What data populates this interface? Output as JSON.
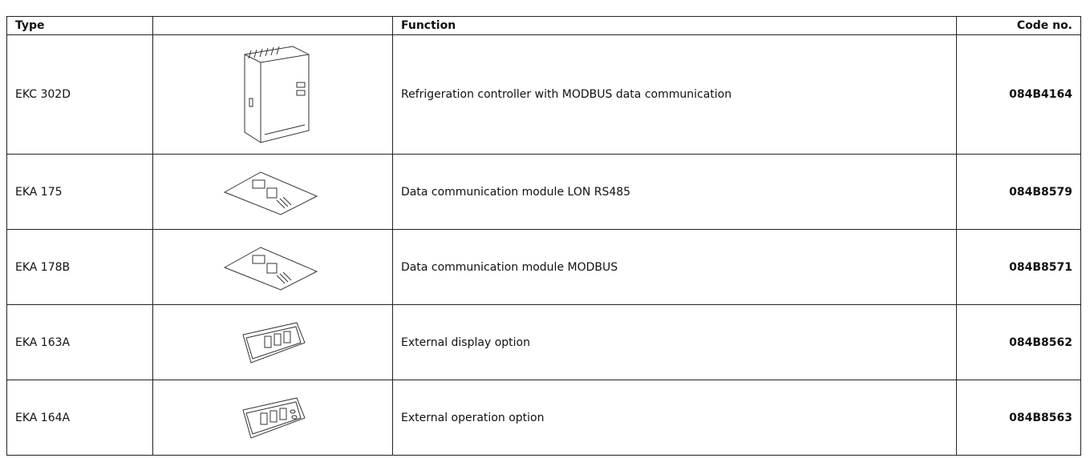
{
  "table": {
    "header": [
      "Type",
      "Function",
      "Code no."
    ],
    "rows": [
      [
        "EKC 302D",
        "Refrigeration controller with MODBUS data communication",
        "084B4164"
      ],
      [
        "EKA 175",
        "Data communication module LON RS485",
        "084B8579"
      ],
      [
        "EKA 178B",
        "Data communication module MODBUS",
        "084B8571"
      ],
      [
        "EKA 163A",
        "External display option",
        "084B8562"
      ],
      [
        "EKA 164A",
        "External operation option",
        "084B8563"
      ]
    ]
  }
}
